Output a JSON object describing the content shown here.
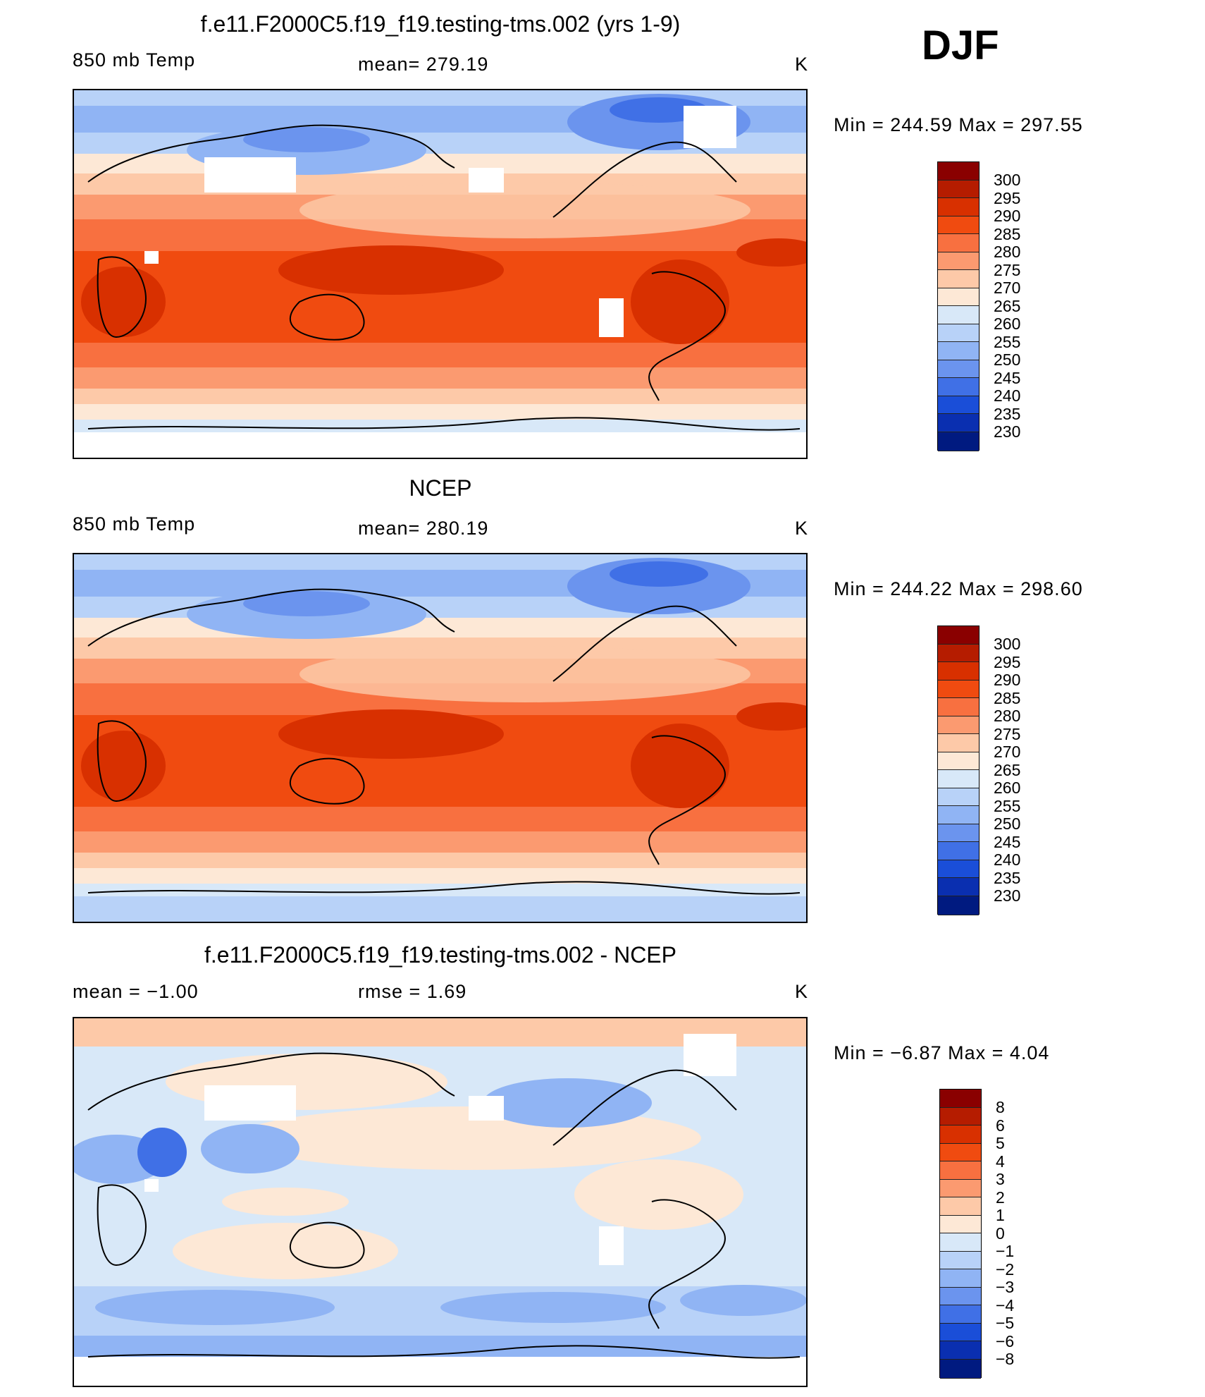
{
  "season": "DJF",
  "panels": [
    {
      "id": "model",
      "title": "f.e11.F2000C5.f19_f19.testing-tms.002 (yrs 1-9)",
      "left_label": "850 mb Temp",
      "center_label": "mean=  279.19",
      "units": "K",
      "minmax": "Min  =  244.59  Max  =  297.55",
      "colorbar": {
        "labels": [
          "300",
          "295",
          "290",
          "285",
          "280",
          "275",
          "270",
          "265",
          "260",
          "255",
          "250",
          "245",
          "240",
          "235",
          "230"
        ],
        "colors": [
          "#8a0000",
          "#b51c00",
          "#d83000",
          "#f04b10",
          "#f87040",
          "#fb9a70",
          "#fdc9a8",
          "#fde8d6",
          "#d8e8f8",
          "#b8d2f8",
          "#90b4f4",
          "#6b94ee",
          "#4070e6",
          "#1a4ed8",
          "#0a2fb0",
          "#001a80"
        ]
      }
    },
    {
      "id": "obs",
      "title": "NCEP",
      "left_label": "850 mb Temp",
      "center_label": "mean=  280.19",
      "units": "K",
      "minmax": "Min  =  244.22  Max  =  298.60",
      "colorbar": {
        "labels": [
          "300",
          "295",
          "290",
          "285",
          "280",
          "275",
          "270",
          "265",
          "260",
          "255",
          "250",
          "245",
          "240",
          "235",
          "230"
        ],
        "colors": [
          "#8a0000",
          "#b51c00",
          "#d83000",
          "#f04b10",
          "#f87040",
          "#fb9a70",
          "#fdc9a8",
          "#fde8d6",
          "#d8e8f8",
          "#b8d2f8",
          "#90b4f4",
          "#6b94ee",
          "#4070e6",
          "#1a4ed8",
          "#0a2fb0",
          "#001a80"
        ]
      }
    },
    {
      "id": "diff",
      "title": "f.e11.F2000C5.f19_f19.testing-tms.002 - NCEP",
      "left_label": "mean =    −1.00",
      "center_label": "rmse =     1.69",
      "units": "K",
      "minmax": "Min  =    −6.87  Max  =     4.04",
      "colorbar": {
        "labels": [
          "8",
          "6",
          "5",
          "4",
          "3",
          "2",
          "1",
          "0",
          "−1",
          "−2",
          "−3",
          "−4",
          "−5",
          "−6",
          "−8"
        ],
        "colors": [
          "#8a0000",
          "#b51c00",
          "#d83000",
          "#f04b10",
          "#f87040",
          "#fb9a70",
          "#fdc9a8",
          "#fde8d6",
          "#d8e8f8",
          "#b8d2f8",
          "#90b4f4",
          "#6b94ee",
          "#4070e6",
          "#1a4ed8",
          "#0a2fb0",
          "#001a80"
        ]
      }
    }
  ]
}
